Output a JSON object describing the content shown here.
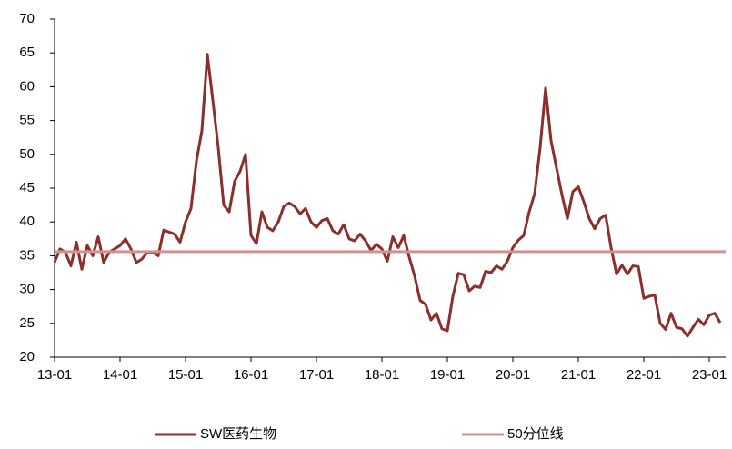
{
  "chart_data": {
    "type": "line",
    "categories": [
      "13-01",
      null,
      null,
      null,
      null,
      null,
      null,
      null,
      null,
      null,
      null,
      null,
      "14-01",
      null,
      null,
      null,
      null,
      null,
      null,
      null,
      null,
      null,
      null,
      null,
      "15-01",
      null,
      null,
      null,
      null,
      null,
      null,
      null,
      null,
      null,
      null,
      null,
      "16-01",
      null,
      null,
      null,
      null,
      null,
      null,
      null,
      null,
      null,
      null,
      null,
      "17-01",
      null,
      null,
      null,
      null,
      null,
      null,
      null,
      null,
      null,
      null,
      null,
      "18-01",
      null,
      null,
      null,
      null,
      null,
      null,
      null,
      null,
      null,
      null,
      null,
      "19-01",
      null,
      null,
      null,
      null,
      null,
      null,
      null,
      null,
      null,
      null,
      null,
      "20-01",
      null,
      null,
      null,
      null,
      null,
      null,
      null,
      null,
      null,
      null,
      null,
      "21-01",
      null,
      null,
      null,
      null,
      null,
      null,
      null,
      null,
      null,
      null,
      null,
      "22-01",
      null,
      null,
      null,
      null,
      null,
      null,
      null,
      null,
      null,
      null,
      null,
      "23-01",
      null,
      null
    ],
    "series": [
      {
        "name": "SW医药生物",
        "color": "#8b2f2c",
        "values": [
          34,
          36,
          35.5,
          33.5,
          37,
          33,
          36.5,
          35,
          37.8,
          34,
          35.5,
          36,
          36.5,
          37.5,
          36,
          34,
          34.5,
          35.5,
          35.5,
          35,
          38.8,
          38.5,
          38.2,
          37,
          40,
          42,
          49,
          53.5,
          64.8,
          58,
          51,
          42.5,
          41.5,
          46,
          47.5,
          50,
          38,
          36.8,
          41.5,
          39.2,
          38.7,
          40,
          42.3,
          42.8,
          42.3,
          41.2,
          42,
          40,
          39.2,
          40.2,
          40.5,
          38.7,
          38.2,
          39.6,
          37.5,
          37.2,
          38.2,
          37.2,
          35.8,
          36.7,
          36,
          34.2,
          37.8,
          36.2,
          38,
          34.8,
          32,
          28.4,
          27.8,
          25.5,
          26.5,
          24.2,
          23.9,
          29,
          32.4,
          32.2,
          29.8,
          30.5,
          30.3,
          32.7,
          32.5,
          33.5,
          33,
          34.2,
          36.2,
          37.3,
          38,
          41.5,
          44.2,
          51,
          59.8,
          52,
          48,
          44,
          40.5,
          44.5,
          45.2,
          43,
          40.5,
          39,
          40.5,
          41,
          36.2,
          32.3,
          33.6,
          32.3,
          33.5,
          33.4,
          28.7,
          29,
          29.2,
          25,
          24.1,
          26.5,
          24.4,
          24.2,
          23.1,
          24.4,
          25.6,
          24.8,
          26.2,
          26.5,
          25.1
        ]
      },
      {
        "name": "50分位线",
        "color": "#d4918f",
        "value": 35.6
      }
    ],
    "ylim": [
      20,
      70
    ],
    "yticks": [
      20,
      25,
      30,
      35,
      40,
      45,
      50,
      55,
      60,
      65,
      70
    ]
  }
}
